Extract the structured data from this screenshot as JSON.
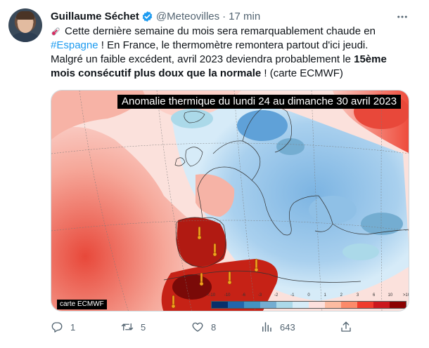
{
  "author": {
    "name": "Guillaume Séchet",
    "handle": "@Meteovilles",
    "separator": "·",
    "time": "17 min"
  },
  "tweet": {
    "line1": "Cette dernière semaine du mois sera remarquablement chaude en",
    "hashtag": "#Espagne",
    "line2_rest": " ! En France, le thermomètre remontera partout d'ici jeudi.",
    "line3": "Malgré un faible excédent, avril 2023 deviendra probablement le ",
    "line3_bold": "15ème",
    "line4_bold": "mois consécutif plus doux que la normale",
    "line4_rest": " ! (carte ECMWF)"
  },
  "map": {
    "title": "Anomalie thermique du lundi 24 au dimanche 30 avril 2023",
    "credit": "carte ECMWF",
    "scale_labels": [
      "<-10",
      "-10",
      "-6",
      "-3",
      "-2",
      "-1",
      "0",
      "1",
      "2",
      "3",
      "6",
      "10",
      ">10"
    ],
    "scale_colors": [
      "#08306b",
      "#2166ac",
      "#4393c3",
      "#74add1",
      "#abd9e9",
      "#d6ecf7",
      "#fde0dd",
      "#fcbba1",
      "#fb8a6a",
      "#ef3b2c",
      "#cb181d",
      "#8b0000"
    ]
  },
  "actions": {
    "replies": "1",
    "retweets": "5",
    "likes": "8",
    "views": "643"
  },
  "icons": {
    "verified": "verified-badge-icon",
    "more": "more-icon",
    "reply": "reply-icon",
    "retweet": "retweet-icon",
    "like": "heart-icon",
    "views": "views-icon",
    "share": "share-icon"
  }
}
